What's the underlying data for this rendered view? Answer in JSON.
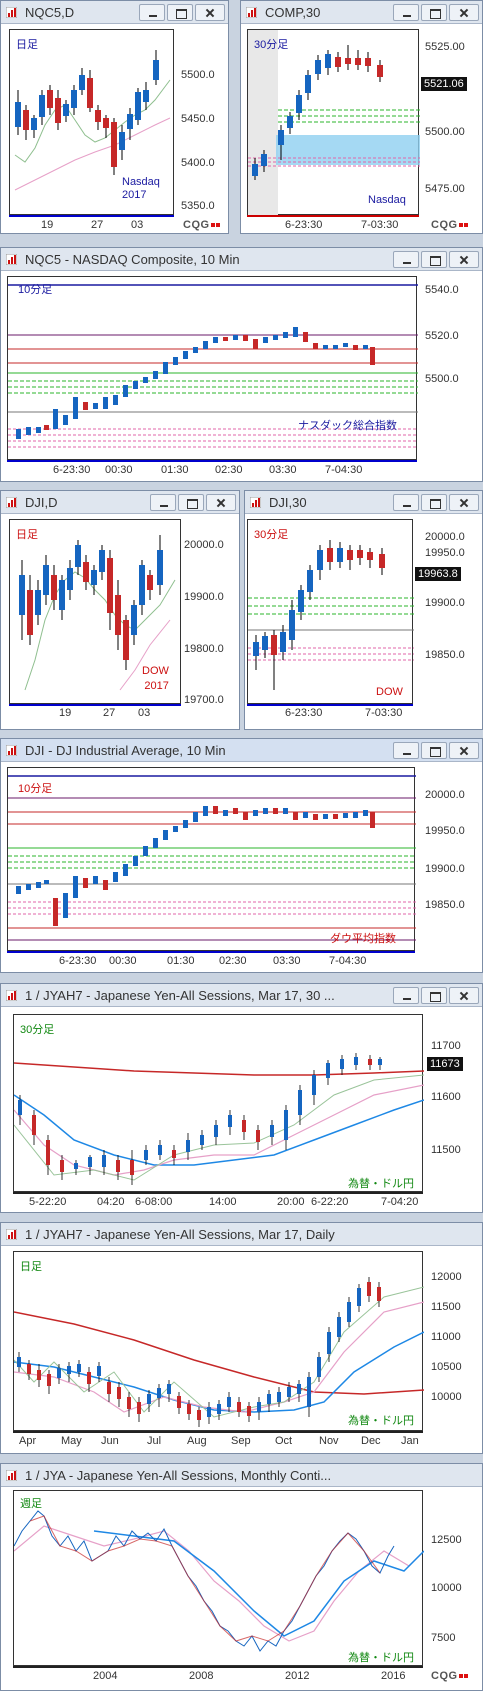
{
  "windows": [
    {
      "id": "nqc5-d",
      "title": "NQC5,D",
      "period_label": "日足",
      "period_color": "#1a1aa0",
      "watermark": "Nasdaq\n2017",
      "watermark_color": "#1a1aa0",
      "y_ticks": [
        "5500.0",
        "5450.0",
        "5400.0",
        "5350.0"
      ],
      "x_ticks": [
        "19",
        "27",
        "03"
      ]
    },
    {
      "id": "comp-30",
      "title": "COMP,30",
      "period_label": "30分足",
      "period_color": "#1a1aa0",
      "watermark": "Nasdaq",
      "watermark_color": "#1a1aa0",
      "price": "5521.06",
      "y_ticks": [
        "5525.00",
        "5500.00",
        "5475.00"
      ],
      "x_ticks": [
        "6-23:30",
        "7-03:30"
      ]
    },
    {
      "id": "nqc5-10",
      "title": "NQC5 - NASDAQ Composite, 10 Min",
      "period_label": "10分足",
      "period_color": "#1a1aa0",
      "watermark": "ナスダック総合指数",
      "watermark_color": "#1a1aa0",
      "y_ticks": [
        "5540.0",
        "5520.0",
        "5500.0"
      ],
      "x_ticks": [
        "6-23:30",
        "00:30",
        "01:30",
        "02:30",
        "03:30",
        "7-04:30"
      ]
    },
    {
      "id": "dji-d",
      "title": "DJI,D",
      "period_label": "日足",
      "period_color": "#cc1111",
      "watermark": "DOW\n2017",
      "watermark_color": "#cc1111",
      "y_ticks": [
        "20000.0",
        "19900.0",
        "19800.0",
        "19700.0"
      ],
      "x_ticks": [
        "19",
        "27",
        "03"
      ]
    },
    {
      "id": "dji-30",
      "title": "DJI,30",
      "period_label": "30分足",
      "period_color": "#cc1111",
      "watermark": "DOW",
      "watermark_color": "#cc1111",
      "price": "19963.8",
      "y_ticks": [
        "20000.0",
        "19950.0",
        "19900.0",
        "19850.0"
      ],
      "x_ticks": [
        "6-23:30",
        "7-03:30"
      ]
    },
    {
      "id": "dji-10",
      "title": "DJI - DJ Industrial Average, 10 Min",
      "period_label": "10分足",
      "period_color": "#cc1111",
      "watermark": "ダウ平均指数",
      "watermark_color": "#cc1111",
      "y_ticks": [
        "20000.0",
        "19950.0",
        "19900.0",
        "19850.0"
      ],
      "x_ticks": [
        "6-23:30",
        "00:30",
        "01:30",
        "02:30",
        "03:30",
        "7-04:30"
      ]
    },
    {
      "id": "jyah7-30",
      "title": "1 / JYAH7 - Japanese Yen-All Sessions, Mar 17, 30 ...",
      "period_label": "30分足",
      "period_color": "#118811",
      "watermark": "為替・ドル円",
      "watermark_color": "#118811",
      "price": "11673",
      "y_ticks": [
        "11700",
        "11600",
        "11500"
      ],
      "x_ticks": [
        "5-22:20",
        "04:20",
        "6-08:00",
        "14:00",
        "20:00",
        "6-22:20",
        "7-04:20"
      ]
    },
    {
      "id": "jyah7-d",
      "title": "1 / JYAH7 - Japanese Yen-All Sessions, Mar 17, Daily",
      "period_label": "日足",
      "period_color": "#118811",
      "watermark": "為替・ドル円",
      "watermark_color": "#118811",
      "y_ticks": [
        "12000",
        "11500",
        "11000",
        "10500",
        "10000"
      ],
      "x_ticks": [
        "Apr",
        "May",
        "Jun",
        "Jul",
        "Aug",
        "Sep",
        "Oct",
        "Nov",
        "Dec",
        "Jan"
      ]
    },
    {
      "id": "jya-m",
      "title": "1 / JYA - Japanese Yen-All Sessions, Monthly Conti...",
      "period_label": "週足",
      "period_color": "#118811",
      "watermark": "為替・ドル円",
      "watermark_color": "#118811",
      "y_ticks": [
        "12500",
        "10000",
        "7500"
      ],
      "x_ticks": [
        "2004",
        "2008",
        "2012",
        "2016"
      ]
    }
  ],
  "brand": "CQG",
  "colors": {
    "up": "#1565c0",
    "down": "#c62828",
    "titlebar": "#dfe6ef"
  }
}
